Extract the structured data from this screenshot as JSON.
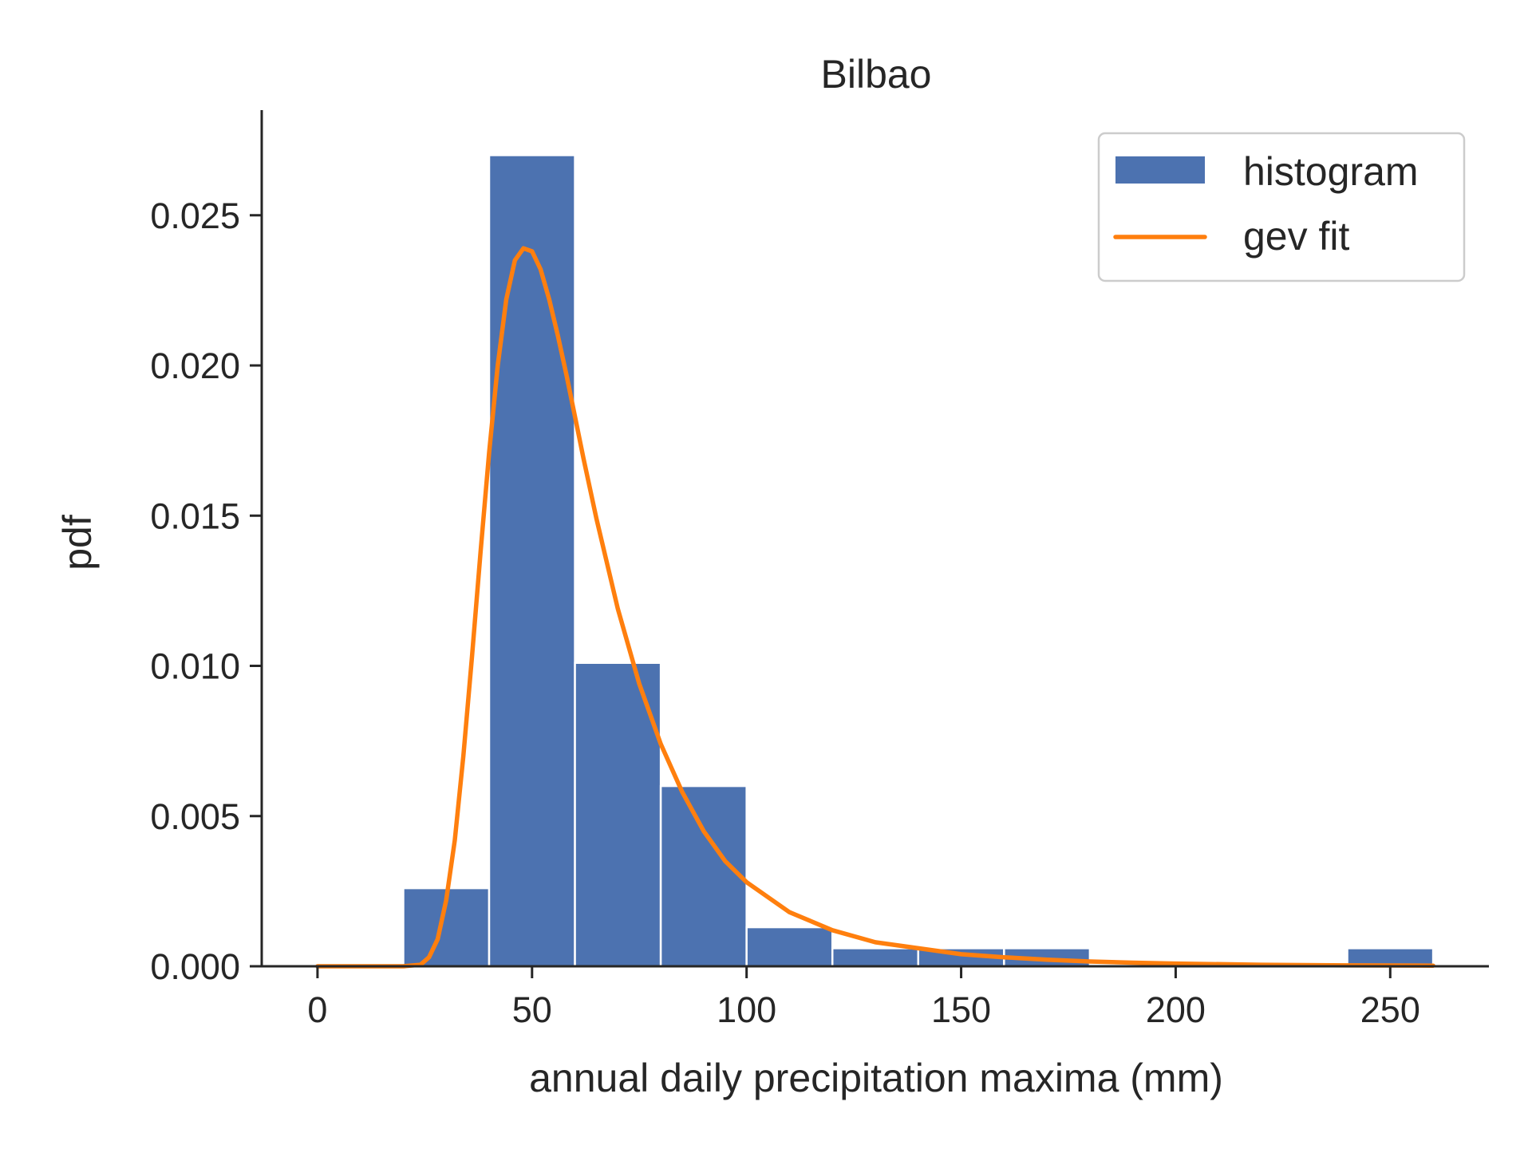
{
  "chart_data": {
    "type": "bar",
    "title": "Bilbao",
    "xlabel": "annual daily precipitation maxima (mm)",
    "ylabel": "pdf",
    "xlim": [
      -13,
      273
    ],
    "ylim": [
      0,
      0.0285
    ],
    "xticks": [
      0,
      50,
      100,
      150,
      200,
      250
    ],
    "yticks": [
      0.0,
      0.005,
      0.01,
      0.015,
      0.02,
      0.025
    ],
    "ytick_decimals": 3,
    "grid": false,
    "legend_position": "top-right",
    "series": [
      {
        "name": "histogram",
        "kind": "histogram",
        "color": "#4c72b0",
        "bins": [
          {
            "x0": 20,
            "x1": 40,
            "value": 0.0026
          },
          {
            "x0": 40,
            "x1": 60,
            "value": 0.027
          },
          {
            "x0": 60,
            "x1": 80,
            "value": 0.0101
          },
          {
            "x0": 80,
            "x1": 100,
            "value": 0.006
          },
          {
            "x0": 100,
            "x1": 120,
            "value": 0.0013
          },
          {
            "x0": 120,
            "x1": 140,
            "value": 0.0006
          },
          {
            "x0": 140,
            "x1": 160,
            "value": 0.0006
          },
          {
            "x0": 160,
            "x1": 180,
            "value": 0.0006
          },
          {
            "x0": 180,
            "x1": 200,
            "value": 0.0
          },
          {
            "x0": 200,
            "x1": 220,
            "value": 0.0
          },
          {
            "x0": 220,
            "x1": 240,
            "value": 0.0
          },
          {
            "x0": 240,
            "x1": 260,
            "value": 0.0006
          }
        ]
      },
      {
        "name": "gev fit",
        "kind": "line",
        "color": "#ff7f0e",
        "x": [
          0,
          20,
          24,
          26,
          28,
          30,
          32,
          34,
          36,
          38,
          40,
          42,
          44,
          46,
          48,
          50,
          52,
          54,
          56,
          58,
          60,
          62,
          65,
          70,
          75,
          80,
          85,
          90,
          95,
          100,
          110,
          120,
          130,
          140,
          150,
          160,
          170,
          180,
          190,
          200,
          220,
          240,
          260
        ],
        "y": [
          0.0,
          0.0,
          5e-05,
          0.0003,
          0.0009,
          0.0022,
          0.0042,
          0.007,
          0.0103,
          0.0138,
          0.0171,
          0.02,
          0.0222,
          0.0235,
          0.0239,
          0.0238,
          0.0232,
          0.0222,
          0.021,
          0.0197,
          0.0183,
          0.0169,
          0.0149,
          0.0119,
          0.0094,
          0.0074,
          0.0058,
          0.0045,
          0.0035,
          0.0028,
          0.0018,
          0.0012,
          0.0008,
          0.0006,
          0.0004,
          0.0003,
          0.00022,
          0.00016,
          0.00012,
          9e-05,
          5e-05,
          3e-05,
          2e-05
        ]
      }
    ]
  }
}
